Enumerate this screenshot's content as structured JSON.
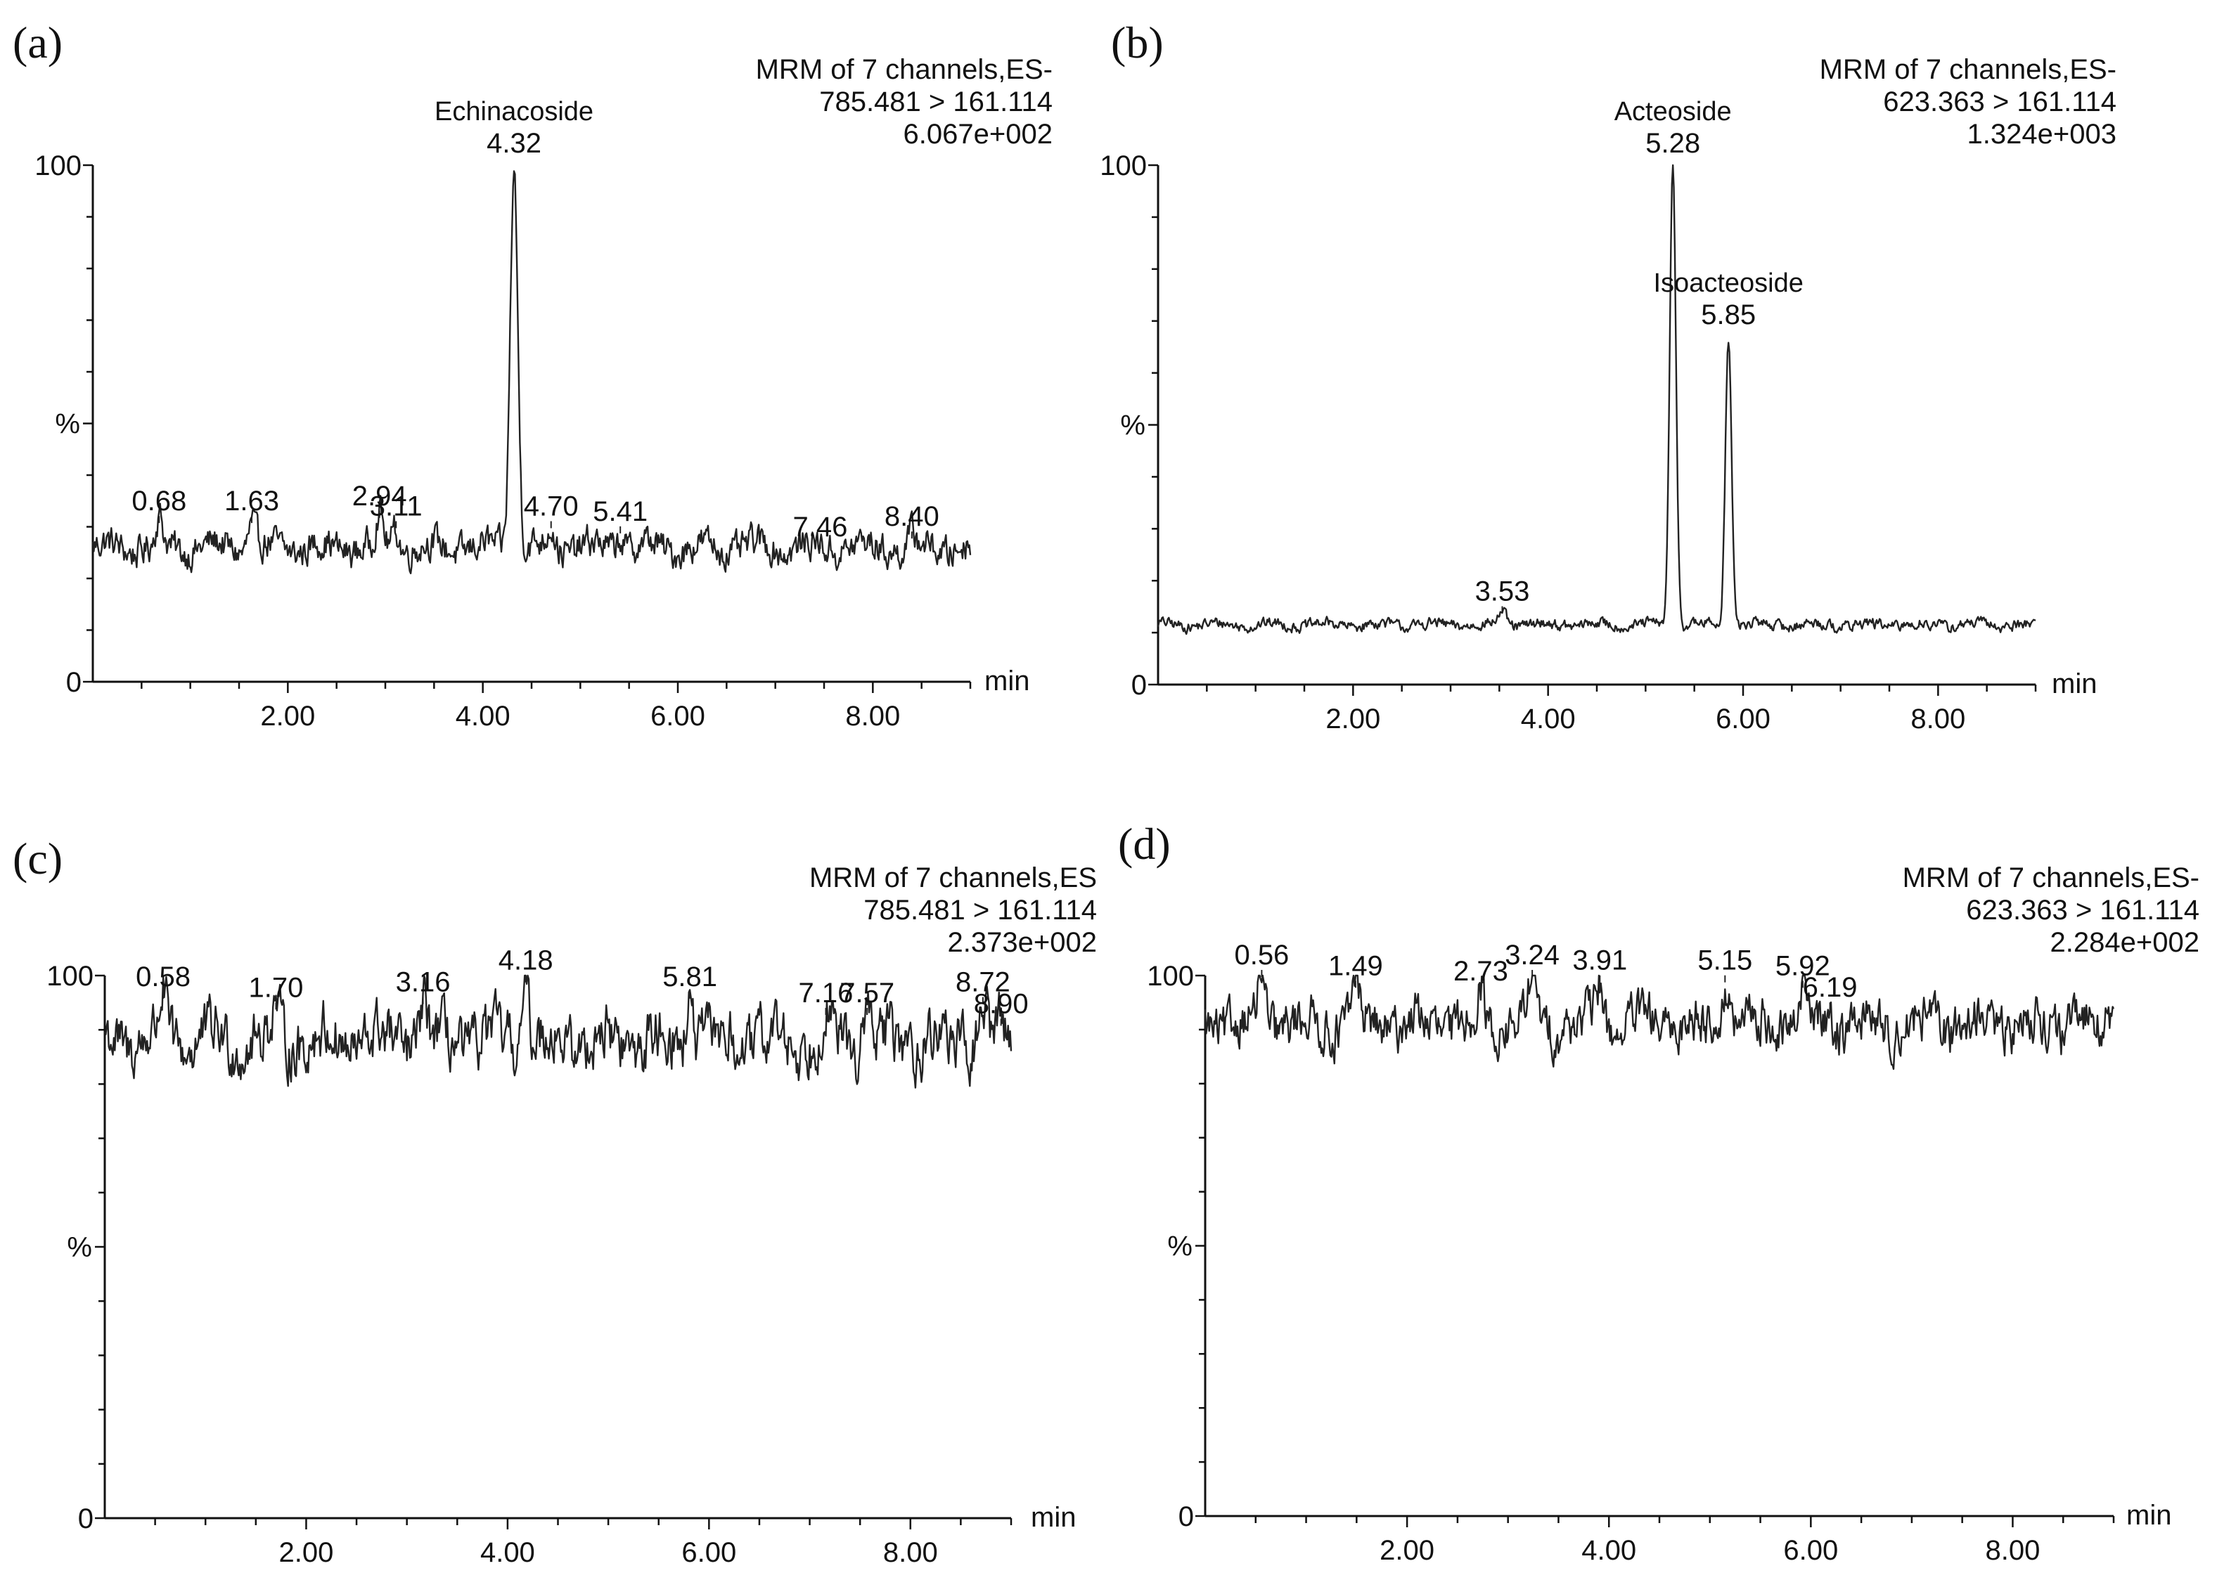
{
  "chart_data": [
    {
      "type": "line",
      "panel": "(a)",
      "header": [
        "MRM of 7 channels,ES-",
        "785.481 > 161.114",
        "6.067e+002"
      ],
      "xlabel": "min",
      "xlim": [
        0,
        9.0
      ],
      "xticks": [
        2.0,
        4.0,
        6.0,
        8.0
      ],
      "xtick_labels": [
        "2.00",
        "4.00",
        "6.00",
        "8.00"
      ],
      "ylabel": "%",
      "ylim": [
        0,
        100
      ],
      "yticks_labeled": [
        "0",
        "%",
        "100"
      ],
      "baseline": 26,
      "noise_amplitude": 3.5,
      "peaks": [
        {
          "time": 0.68,
          "label": "0.68",
          "height": 31,
          "width": 0.05
        },
        {
          "time": 1.63,
          "label": "1.63",
          "height": 31,
          "width": 0.05
        },
        {
          "time": 2.94,
          "label": "2.94",
          "height": 32,
          "width": 0.05
        },
        {
          "time": 3.11,
          "label": "3.11",
          "height": 30,
          "width": 0.05
        },
        {
          "time": 4.32,
          "label": "4.32",
          "compound": "Echinacoside",
          "height": 100,
          "width": 0.055
        },
        {
          "time": 4.7,
          "label": "4.70",
          "height": 30,
          "width": 0.05
        },
        {
          "time": 5.41,
          "label": "5.41",
          "height": 29,
          "width": 0.05
        },
        {
          "time": 7.46,
          "label": "7.46",
          "height": 26,
          "width": 0.05
        },
        {
          "time": 8.4,
          "label": "8.40",
          "height": 28,
          "width": 0.05
        }
      ]
    },
    {
      "type": "line",
      "panel": "(b)",
      "header": [
        "MRM of 7 channels,ES-",
        "623.363 > 161.114",
        "1.324e+003"
      ],
      "xlabel": "min",
      "xlim": [
        0,
        9.0
      ],
      "xticks": [
        2.0,
        4.0,
        6.0,
        8.0
      ],
      "xtick_labels": [
        "2.00",
        "4.00",
        "6.00",
        "8.00"
      ],
      "ylabel": "%",
      "ylim": [
        0,
        100
      ],
      "yticks_labeled": [
        "0",
        "%",
        "100"
      ],
      "baseline": 11.5,
      "noise_amplitude": 1.2,
      "peaks": [
        {
          "time": 3.53,
          "label": "3.53",
          "height": 14,
          "width": 0.06
        },
        {
          "time": 5.28,
          "label": "5.28",
          "compound": "Acteoside",
          "height": 100,
          "width": 0.045
        },
        {
          "time": 5.85,
          "label": "5.85",
          "compound": "Isoacteoside",
          "height": 67,
          "width": 0.045
        }
      ]
    },
    {
      "type": "line",
      "panel": "(c)",
      "header": [
        "MRM of 7 channels,ES",
        "785.481 > 161.114",
        "2.373e+002"
      ],
      "xlabel": "min",
      "xlim": [
        0,
        9.0
      ],
      "xticks": [
        2.0,
        4.0,
        6.0,
        8.0
      ],
      "xtick_labels": [
        "2.00",
        "4.00",
        "6.00",
        "8.00"
      ],
      "ylabel": "%",
      "ylim": [
        0,
        100
      ],
      "yticks_labeled": [
        "0",
        "%",
        "100"
      ],
      "baseline": 88,
      "noise_amplitude": 6,
      "peaks": [
        {
          "time": 0.58,
          "label": "0.58",
          "height": 96,
          "width": 0.05
        },
        {
          "time": 1.7,
          "label": "1.70",
          "height": 94,
          "width": 0.05
        },
        {
          "time": 3.16,
          "label": "3.16",
          "height": 95,
          "width": 0.05
        },
        {
          "time": 4.18,
          "label": "4.18",
          "height": 99,
          "width": 0.05
        },
        {
          "time": 5.81,
          "label": "5.81",
          "height": 96,
          "width": 0.05
        },
        {
          "time": 7.16,
          "label": "7.16",
          "height": 93,
          "width": 0.05
        },
        {
          "time": 7.57,
          "label": "7.57",
          "height": 93,
          "width": 0.05
        },
        {
          "time": 8.72,
          "label": "8.72",
          "height": 95,
          "width": 0.05
        },
        {
          "time": 8.9,
          "label": "8.90",
          "height": 91,
          "width": 0.05
        }
      ]
    },
    {
      "type": "line",
      "panel": "(d)",
      "header": [
        "MRM of 7 channels,ES-",
        "623.363 > 161.114",
        "2.284e+002"
      ],
      "xlabel": "min",
      "xlim": [
        0,
        9.0
      ],
      "xticks": [
        2.0,
        4.0,
        6.0,
        8.0
      ],
      "xtick_labels": [
        "2.00",
        "4.00",
        "6.00",
        "8.00"
      ],
      "ylabel": "%",
      "ylim": [
        0,
        100
      ],
      "yticks_labeled": [
        "0",
        "%",
        "100"
      ],
      "baseline": 91,
      "noise_amplitude": 5,
      "peaks": [
        {
          "time": 0.56,
          "label": "0.56",
          "height": 100,
          "width": 0.05
        },
        {
          "time": 1.49,
          "label": "1.49",
          "height": 98,
          "width": 0.05
        },
        {
          "time": 2.73,
          "label": "2.73",
          "height": 97,
          "width": 0.05
        },
        {
          "time": 3.24,
          "label": "3.24",
          "height": 100,
          "width": 0.05
        },
        {
          "time": 3.91,
          "label": "3.91",
          "height": 99,
          "width": 0.05
        },
        {
          "time": 5.15,
          "label": "5.15",
          "height": 99,
          "width": 0.05
        },
        {
          "time": 5.92,
          "label": "5.92",
          "height": 98,
          "width": 0.05
        },
        {
          "time": 6.19,
          "label": "6.19",
          "height": 94,
          "width": 0.05
        }
      ]
    }
  ]
}
